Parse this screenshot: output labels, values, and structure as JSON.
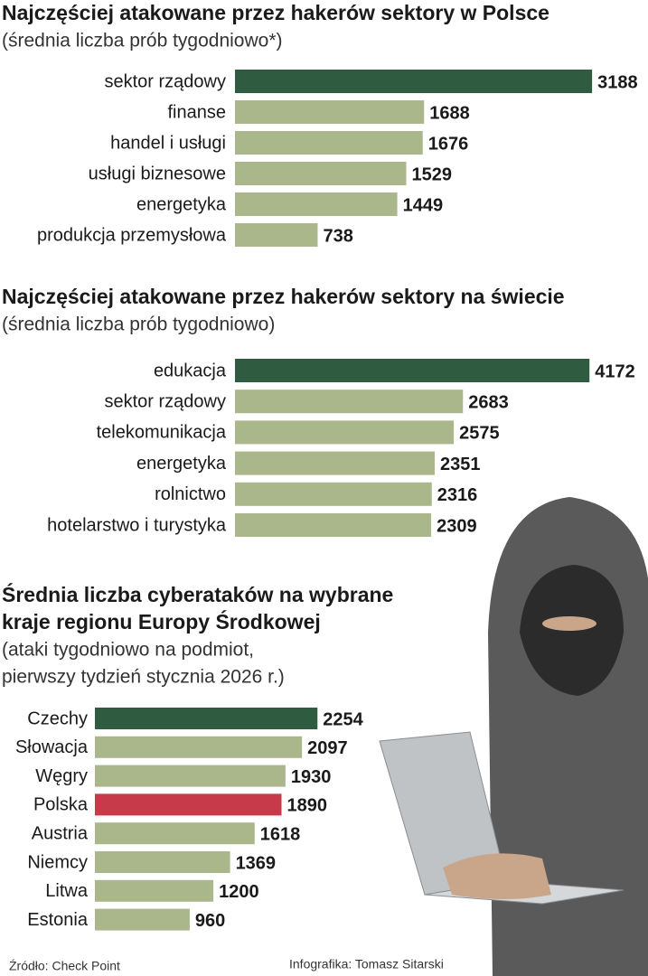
{
  "charts": [
    {
      "chart_data": {
        "type": "bar",
        "orientation": "horizontal",
        "title": [
          "Najczęściej atakowane przez hakerów sektory w Polsce"
        ],
        "subtitle": [
          "(średnia liczba prób tygodniowo*)"
        ],
        "categories": [
          "sektor rządowy",
          "finanse",
          "handel i usługi",
          "usługi biznesowe",
          "energetyka",
          "produkcja przemysłowa"
        ],
        "values": [
          3188,
          1688,
          1676,
          1529,
          1449,
          738
        ],
        "colors": [
          "#2f5b40",
          "#a9b78b",
          "#a9b78b",
          "#a9b78b",
          "#a9b78b",
          "#a9b78b"
        ],
        "xlim": [
          0,
          3550
        ]
      }
    },
    {
      "chart_data": {
        "type": "bar",
        "orientation": "horizontal",
        "title": [
          "Najczęściej atakowane przez hakerów sektory na świecie"
        ],
        "subtitle": [
          "(średnia liczba prób tygodniowo)"
        ],
        "categories": [
          "edukacja",
          "sektor rządowy",
          "telekomunikacja",
          "energetyka",
          "rolnictwo",
          "hotelarstwo i turystyka"
        ],
        "values": [
          4172,
          2683,
          2575,
          2351,
          2316,
          2309
        ],
        "colors": [
          "#2f5b40",
          "#a9b78b",
          "#a9b78b",
          "#a9b78b",
          "#a9b78b",
          "#a9b78b"
        ],
        "xlim": [
          0,
          4680
        ]
      }
    },
    {
      "chart_data": {
        "type": "bar",
        "orientation": "horizontal",
        "title": [
          "Średnia liczba cyberataków na wybrane",
          "kraje regionu Europy Środkowej"
        ],
        "subtitle": [
          "(ataki tygodniowo na podmiot,",
          "pierwszy tydzień stycznia 2026 r.)"
        ],
        "categories": [
          "Czechy",
          "Słowacja",
          "Węgry",
          "Polska",
          "Austria",
          "Niemcy",
          "Litwa",
          "Estonia"
        ],
        "values": [
          2254,
          2097,
          1930,
          1890,
          1618,
          1369,
          1200,
          960
        ],
        "colors": [
          "#2f5b40",
          "#a9b78b",
          "#a9b78b",
          "#c73a4a",
          "#a9b78b",
          "#a9b78b",
          "#a9b78b",
          "#a9b78b"
        ],
        "xlim": [
          0,
          2700
        ]
      }
    }
  ],
  "footer": {
    "source": "Źródło: Check Point",
    "credit": "Infografika: Tomasz Sitarski"
  }
}
